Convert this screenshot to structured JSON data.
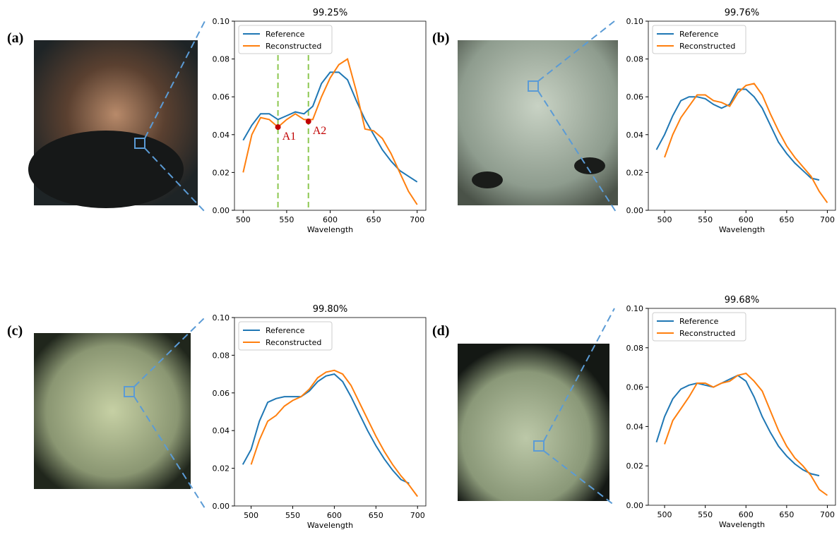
{
  "chart_data": [
    {
      "type": "line",
      "panel_label": "(a)",
      "title": "99.25%",
      "xlabel": "Wavelength",
      "xlim": [
        490,
        710
      ],
      "xticks": [
        500,
        550,
        600,
        650,
        700
      ],
      "ylim": [
        0,
        0.1
      ],
      "yticks": [
        {
          "value": 0,
          "label": "0.00"
        },
        {
          "value": 0.02,
          "label": "0.02"
        },
        {
          "value": 0.04,
          "label": "0.04"
        },
        {
          "value": 0.06,
          "label": "0.06"
        },
        {
          "value": 0.08,
          "label": "0.08"
        },
        {
          "value": 0.1,
          "label": "0.10"
        }
      ],
      "legend": "upper left",
      "series": [
        {
          "name": "Reference",
          "color": "#1f77b4",
          "x": [
            500,
            510,
            520,
            530,
            540,
            550,
            560,
            570,
            580,
            590,
            600,
            610,
            620,
            630,
            640,
            650,
            660,
            670,
            680,
            690,
            700
          ],
          "values": [
            0.037,
            0.045,
            0.051,
            0.051,
            0.048,
            0.05,
            0.052,
            0.051,
            0.055,
            0.067,
            0.073,
            0.073,
            0.069,
            0.058,
            0.048,
            0.04,
            0.032,
            0.026,
            0.021,
            0.018,
            0.015
          ]
        },
        {
          "name": "Reconstructed",
          "color": "#ff7f0e",
          "x": [
            500,
            510,
            520,
            530,
            540,
            550,
            560,
            570,
            580,
            590,
            600,
            610,
            620,
            630,
            640,
            650,
            660,
            670,
            680,
            690,
            700
          ],
          "values": [
            0.02,
            0.04,
            0.049,
            0.048,
            0.044,
            0.048,
            0.051,
            0.048,
            0.048,
            0.06,
            0.07,
            0.077,
            0.08,
            0.063,
            0.043,
            0.042,
            0.038,
            0.03,
            0.02,
            0.01,
            0.003
          ]
        }
      ],
      "vlines": [
        540,
        575
      ],
      "vline_color": "#8dc750",
      "annotations": [
        {
          "text": "A1",
          "x": 540,
          "y": 0.044
        },
        {
          "text": "A2",
          "x": 575,
          "y": 0.047
        }
      ],
      "annotation_color": "#c00000"
    },
    {
      "type": "line",
      "panel_label": "(b)",
      "title": "99.76%",
      "xlabel": "Wavelength",
      "xlim": [
        480,
        710
      ],
      "xticks": [
        500,
        550,
        600,
        650,
        700
      ],
      "ylim": [
        0,
        0.1
      ],
      "yticks": [
        {
          "value": 0,
          "label": "0.00"
        },
        {
          "value": 0.02,
          "label": "0.02"
        },
        {
          "value": 0.04,
          "label": "0.04"
        },
        {
          "value": 0.06,
          "label": "0.06"
        },
        {
          "value": 0.08,
          "label": "0.08"
        },
        {
          "value": 0.1,
          "label": "0.10"
        }
      ],
      "legend": "upper left",
      "series": [
        {
          "name": "Reference",
          "color": "#1f77b4",
          "x": [
            490,
            500,
            510,
            520,
            530,
            540,
            550,
            560,
            570,
            580,
            590,
            600,
            610,
            620,
            630,
            640,
            650,
            660,
            670,
            680,
            690
          ],
          "values": [
            0.032,
            0.04,
            0.05,
            0.058,
            0.06,
            0.06,
            0.059,
            0.056,
            0.054,
            0.056,
            0.064,
            0.064,
            0.06,
            0.054,
            0.045,
            0.036,
            0.03,
            0.025,
            0.021,
            0.017,
            0.016
          ]
        },
        {
          "name": "Reconstructed",
          "color": "#ff7f0e",
          "x": [
            500,
            510,
            520,
            530,
            540,
            550,
            560,
            570,
            580,
            590,
            600,
            610,
            620,
            630,
            640,
            650,
            660,
            670,
            680,
            690,
            700
          ],
          "values": [
            0.028,
            0.04,
            0.049,
            0.055,
            0.061,
            0.061,
            0.058,
            0.057,
            0.055,
            0.062,
            0.066,
            0.067,
            0.061,
            0.051,
            0.042,
            0.034,
            0.028,
            0.023,
            0.018,
            0.01,
            0.004
          ]
        }
      ]
    },
    {
      "type": "line",
      "panel_label": "(c)",
      "title": "99.80%",
      "xlabel": "Wavelength",
      "xlim": [
        480,
        710
      ],
      "xticks": [
        500,
        550,
        600,
        650,
        700
      ],
      "ylim": [
        0,
        0.1
      ],
      "yticks": [
        {
          "value": 0,
          "label": "0.00"
        },
        {
          "value": 0.02,
          "label": "0.02"
        },
        {
          "value": 0.04,
          "label": "0.04"
        },
        {
          "value": 0.06,
          "label": "0.06"
        },
        {
          "value": 0.08,
          "label": "0.08"
        },
        {
          "value": 0.1,
          "label": "0.10"
        }
      ],
      "legend": "upper left",
      "series": [
        {
          "name": "Reference",
          "color": "#1f77b4",
          "x": [
            490,
            500,
            510,
            520,
            530,
            540,
            550,
            560,
            570,
            580,
            590,
            600,
            610,
            620,
            630,
            640,
            650,
            660,
            670,
            680,
            690
          ],
          "values": [
            0.022,
            0.03,
            0.045,
            0.055,
            0.057,
            0.058,
            0.058,
            0.058,
            0.061,
            0.066,
            0.069,
            0.07,
            0.066,
            0.058,
            0.049,
            0.04,
            0.032,
            0.025,
            0.019,
            0.014,
            0.012
          ]
        },
        {
          "name": "Reconstructed",
          "color": "#ff7f0e",
          "x": [
            500,
            510,
            520,
            530,
            540,
            550,
            560,
            570,
            580,
            590,
            600,
            610,
            620,
            630,
            640,
            650,
            660,
            670,
            680,
            690,
            700
          ],
          "values": [
            0.022,
            0.035,
            0.045,
            0.048,
            0.053,
            0.056,
            0.058,
            0.062,
            0.068,
            0.071,
            0.072,
            0.07,
            0.064,
            0.055,
            0.046,
            0.037,
            0.029,
            0.022,
            0.016,
            0.011,
            0.005
          ]
        }
      ]
    },
    {
      "type": "line",
      "panel_label": "(d)",
      "title": "99.68%",
      "xlabel": "Wavelength",
      "xlim": [
        480,
        710
      ],
      "xticks": [
        500,
        550,
        600,
        650,
        700
      ],
      "ylim": [
        0,
        0.1
      ],
      "yticks": [
        {
          "value": 0,
          "label": "0.00"
        },
        {
          "value": 0.02,
          "label": "0.02"
        },
        {
          "value": 0.04,
          "label": "0.04"
        },
        {
          "value": 0.06,
          "label": "0.06"
        },
        {
          "value": 0.08,
          "label": "0.08"
        },
        {
          "value": 0.1,
          "label": "0.10"
        }
      ],
      "legend": "upper left",
      "series": [
        {
          "name": "Reference",
          "color": "#1f77b4",
          "x": [
            490,
            500,
            510,
            520,
            530,
            540,
            550,
            560,
            570,
            580,
            590,
            600,
            610,
            620,
            630,
            640,
            650,
            660,
            670,
            680,
            690
          ],
          "values": [
            0.032,
            0.045,
            0.054,
            0.059,
            0.061,
            0.062,
            0.061,
            0.06,
            0.062,
            0.064,
            0.066,
            0.063,
            0.055,
            0.045,
            0.037,
            0.03,
            0.025,
            0.021,
            0.018,
            0.016,
            0.015
          ]
        },
        {
          "name": "Reconstructed",
          "color": "#ff7f0e",
          "x": [
            500,
            510,
            520,
            530,
            540,
            550,
            560,
            570,
            580,
            590,
            600,
            610,
            620,
            630,
            640,
            650,
            660,
            670,
            680,
            690,
            700
          ],
          "values": [
            0.031,
            0.043,
            0.049,
            0.055,
            0.062,
            0.062,
            0.06,
            0.062,
            0.063,
            0.066,
            0.067,
            0.063,
            0.058,
            0.048,
            0.038,
            0.03,
            0.024,
            0.02,
            0.015,
            0.008,
            0.005
          ]
        }
      ]
    }
  ]
}
